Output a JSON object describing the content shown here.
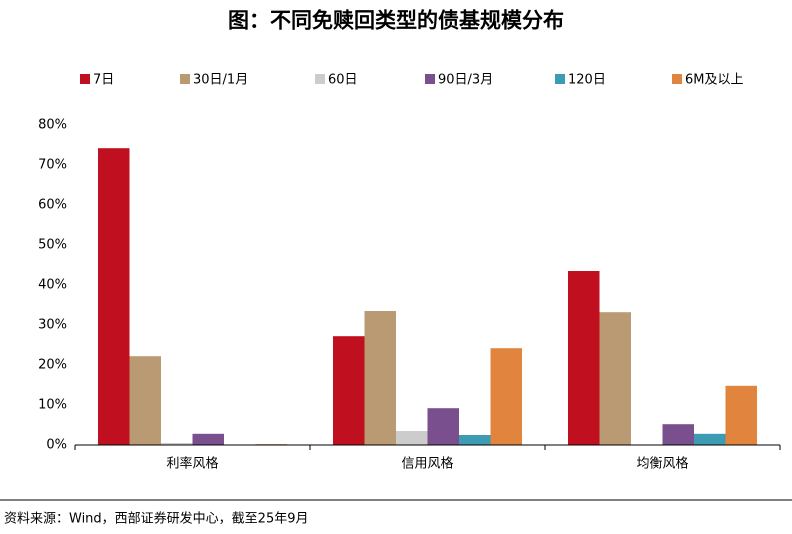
{
  "chart_data": {
    "type": "bar",
    "title": "图：不同免赎回类型的债基规模分布",
    "categories": [
      "利率风格",
      "信用风格",
      "均衡风格"
    ],
    "series": [
      {
        "name": "7日",
        "color": "#c00f1e",
        "values": [
          74.2,
          27.2,
          43.5
        ]
      },
      {
        "name": "30日/1月",
        "color": "#b99a73",
        "values": [
          22.2,
          33.5,
          33.2
        ]
      },
      {
        "name": "60日",
        "color": "#cccccc",
        "values": [
          0.5,
          3.5,
          0
        ]
      },
      {
        "name": "90日/3月",
        "color": "#7a4f8e",
        "values": [
          2.8,
          9.2,
          5.2
        ]
      },
      {
        "name": "120日",
        "color": "#3d9cb3",
        "values": [
          0,
          2.5,
          2.8
        ]
      },
      {
        "name": "6M及以上",
        "color": "#e0843e",
        "values": [
          0.2,
          24.2,
          14.8
        ]
      }
    ],
    "ylim": [
      0,
      80
    ],
    "yticks": [
      {
        "value": 0,
        "label": "0%"
      },
      {
        "value": 10,
        "label": "10%"
      },
      {
        "value": 20,
        "label": "20%"
      },
      {
        "value": 30,
        "label": "30%"
      },
      {
        "value": 40,
        "label": "40%"
      },
      {
        "value": 50,
        "label": "50%"
      },
      {
        "value": 60,
        "label": "60%"
      },
      {
        "value": 70,
        "label": "70%"
      },
      {
        "value": 80,
        "label": "80%"
      }
    ],
    "grid": false,
    "legend": "top",
    "source": "资料来源：Wind，西部证券研发中心，截至25年9月"
  }
}
